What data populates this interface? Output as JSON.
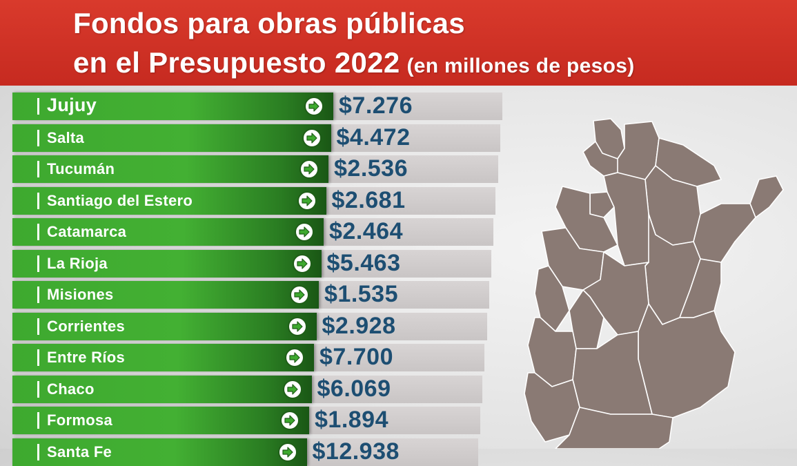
{
  "header": {
    "title_line1": "Fondos para obras públicas",
    "title_line2": "en el Presupuesto 2022",
    "subtitle": "(en millones de pesos)"
  },
  "colors": {
    "header_red": "#c62a20",
    "bar_green": "#3ea92f",
    "value_blue": "#1d4e72",
    "map_brown": "#8a7a74"
  },
  "chart_data": {
    "type": "table",
    "title": "Fondos para obras públicas en el Presupuesto 2022",
    "unit": "(en millones de pesos)",
    "rows": [
      {
        "province": "Jujuy",
        "value_label": "$7.276",
        "value": 7276
      },
      {
        "province": "Salta",
        "value_label": "$4.472",
        "value": 4472
      },
      {
        "province": "Tucumán",
        "value_label": "$2.536",
        "value": 2536
      },
      {
        "province": "Santiago del Estero",
        "value_label": "$2.681",
        "value": 2681
      },
      {
        "province": "Catamarca",
        "value_label": "$2.464",
        "value": 2464
      },
      {
        "province": "La Rioja",
        "value_label": "$5.463",
        "value": 5463
      },
      {
        "province": "Misiones",
        "value_label": "$1.535",
        "value": 1535
      },
      {
        "province": "Corrientes",
        "value_label": "$2.928",
        "value": 2928
      },
      {
        "province": "Entre Ríos",
        "value_label": "$7.700",
        "value": 7700
      },
      {
        "province": "Chaco",
        "value_label": "$6.069",
        "value": 6069
      },
      {
        "province": "Formosa",
        "value_label": "$1.894",
        "value": 1894
      },
      {
        "province": "Santa Fe",
        "value_label": "$12.938",
        "value": 12938
      }
    ]
  },
  "map": {
    "icon": "argentina-north-map-icon"
  }
}
